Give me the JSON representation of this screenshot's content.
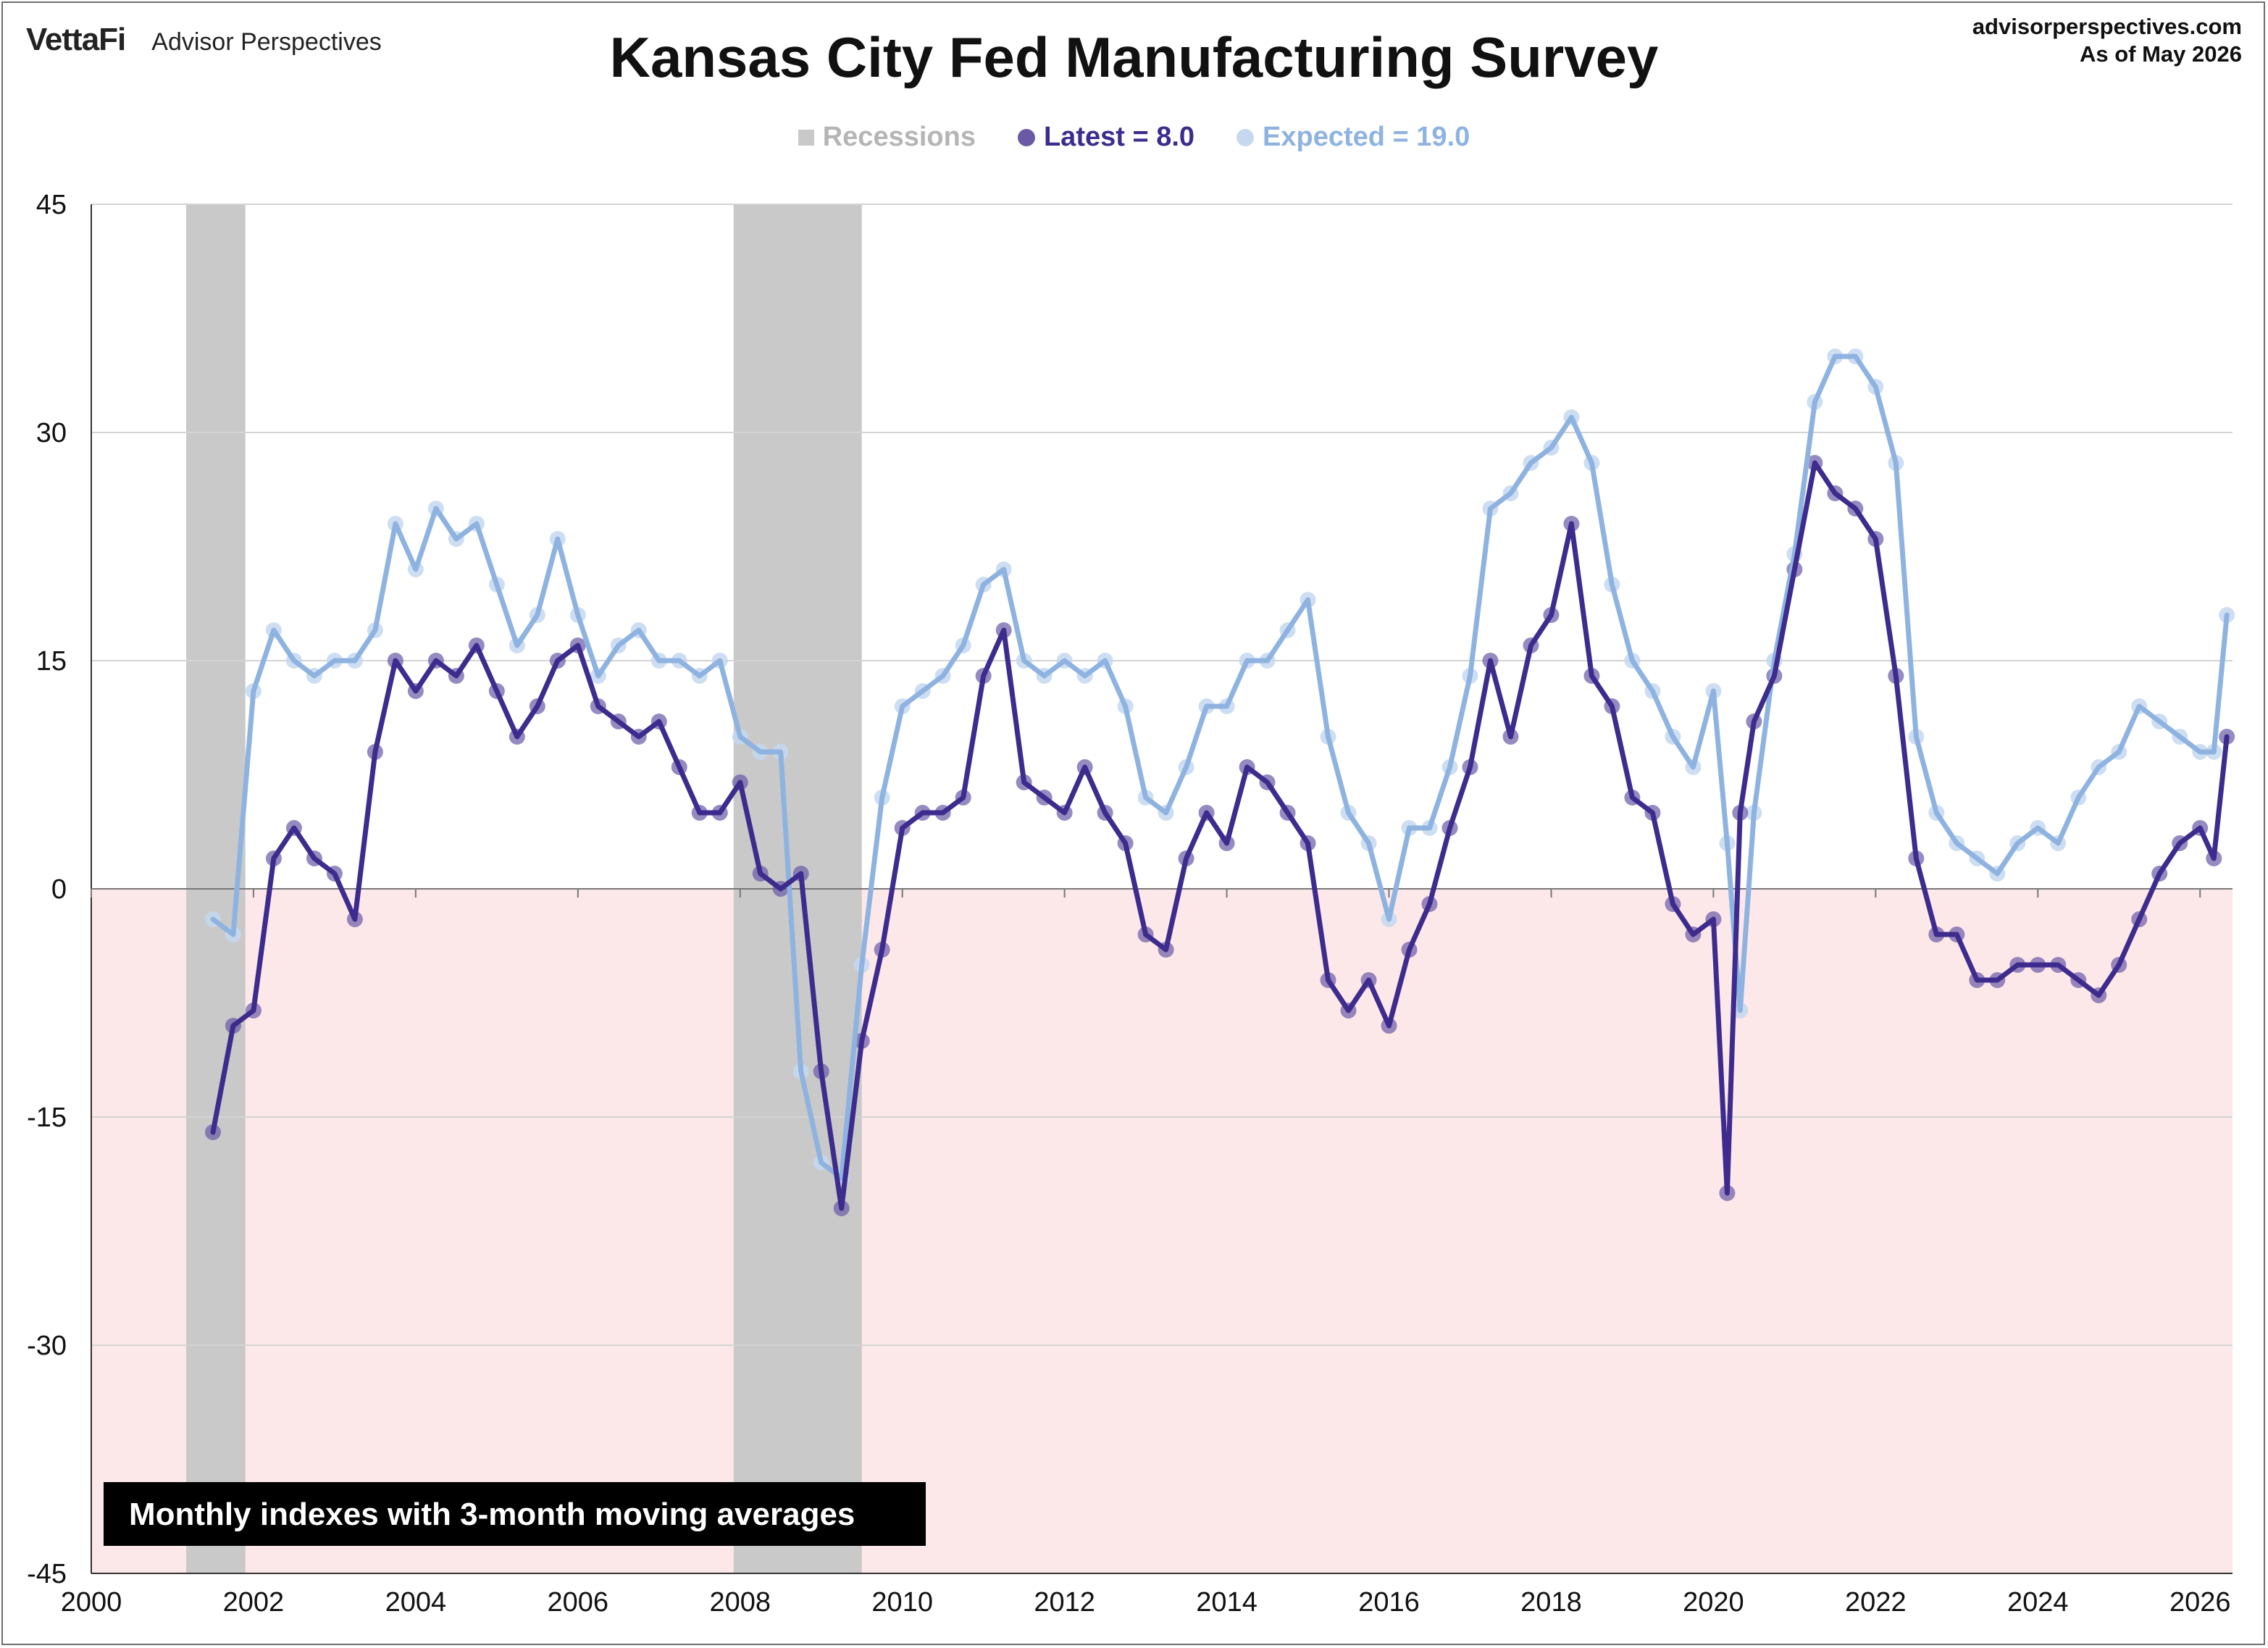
{
  "header": {
    "brand": "VettaFi",
    "brand_sub": "Advisor Perspectives",
    "title": "Kansas City Fed Manufacturing Survey",
    "source_line1": "advisorperspectives.com",
    "source_line2": "As of May 2026"
  },
  "legend": {
    "recessions": "Recessions",
    "latest": "Latest = 8.0",
    "expected": "Expected = 19.0"
  },
  "note": "Monthly indexes with 3-month moving averages",
  "colors": {
    "latest": "#3d2c8d",
    "latest_dot": "#6a5aa6",
    "expected": "#8fb3e0",
    "expected_dot": "#c6d8f0",
    "recession": "#c9c9c9",
    "negative_band": "#fde8e9",
    "legend_recession_text": "#b5b5b5"
  },
  "chart_data": {
    "type": "line",
    "xlabel": "",
    "ylabel": "",
    "xlim": [
      2000,
      2026.4
    ],
    "ylim": [
      -45,
      45
    ],
    "x_ticks": [
      "2000",
      "2002",
      "2004",
      "2006",
      "2008",
      "2010",
      "2012",
      "2014",
      "2016",
      "2018",
      "2020",
      "2022",
      "2024",
      "2026"
    ],
    "y_ticks": [
      "45",
      "30",
      "15",
      "0",
      "-15",
      "-30",
      "-45"
    ],
    "legend_position": "top-center",
    "grid": "horizontal",
    "recessions": [
      [
        2001.17,
        2001.9
      ],
      [
        2007.92,
        2009.5
      ]
    ],
    "series": [
      {
        "name": "Latest = 8.0",
        "style": "3-month moving average line with monthly dots",
        "x": [
          2001.5,
          2001.75,
          2002.0,
          2002.25,
          2002.5,
          2002.75,
          2003.0,
          2003.25,
          2003.5,
          2003.75,
          2004.0,
          2004.25,
          2004.5,
          2004.75,
          2005.0,
          2005.25,
          2005.5,
          2005.75,
          2006.0,
          2006.25,
          2006.5,
          2006.75,
          2007.0,
          2007.25,
          2007.5,
          2007.75,
          2008.0,
          2008.25,
          2008.5,
          2008.75,
          2009.0,
          2009.25,
          2009.5,
          2009.75,
          2010.0,
          2010.25,
          2010.5,
          2010.75,
          2011.0,
          2011.25,
          2011.5,
          2011.75,
          2012.0,
          2012.25,
          2012.5,
          2012.75,
          2013.0,
          2013.25,
          2013.5,
          2013.75,
          2014.0,
          2014.25,
          2014.5,
          2014.75,
          2015.0,
          2015.25,
          2015.5,
          2015.75,
          2016.0,
          2016.25,
          2016.5,
          2016.75,
          2017.0,
          2017.25,
          2017.5,
          2017.75,
          2018.0,
          2018.25,
          2018.5,
          2018.75,
          2019.0,
          2019.25,
          2019.5,
          2019.75,
          2020.0,
          2020.17,
          2020.33,
          2020.5,
          2020.75,
          2021.0,
          2021.25,
          2021.5,
          2021.75,
          2022.0,
          2022.25,
          2022.5,
          2022.75,
          2023.0,
          2023.25,
          2023.5,
          2023.75,
          2024.0,
          2024.25,
          2024.5,
          2024.75,
          2025.0,
          2025.25,
          2025.5,
          2025.75,
          2026.0,
          2026.17,
          2026.33
        ],
        "values": [
          -16,
          -9,
          -8,
          2,
          4,
          2,
          1,
          -2,
          9,
          15,
          13,
          15,
          14,
          16,
          13,
          10,
          12,
          15,
          16,
          12,
          11,
          10,
          11,
          8,
          5,
          5,
          7,
          1,
          0,
          1,
          -12,
          -21,
          -10,
          -4,
          4,
          5,
          5,
          6,
          14,
          17,
          7,
          6,
          5,
          8,
          5,
          3,
          -3,
          -4,
          2,
          5,
          3,
          8,
          7,
          5,
          3,
          -6,
          -8,
          -6,
          -9,
          -4,
          -1,
          4,
          8,
          15,
          10,
          16,
          18,
          24,
          14,
          12,
          6,
          5,
          -1,
          -3,
          -2,
          -20,
          5,
          11,
          14,
          21,
          28,
          26,
          25,
          23,
          14,
          2,
          -3,
          -3,
          -6,
          -6,
          -5,
          -5,
          -5,
          -6,
          -7,
          -5,
          -2,
          1,
          3,
          4,
          2,
          10
        ]
      },
      {
        "name": "Expected = 19.0",
        "style": "3-month moving average line with monthly dots",
        "x": [
          2001.5,
          2001.75,
          2002.0,
          2002.25,
          2002.5,
          2002.75,
          2003.0,
          2003.25,
          2003.5,
          2003.75,
          2004.0,
          2004.25,
          2004.5,
          2004.75,
          2005.0,
          2005.25,
          2005.5,
          2005.75,
          2006.0,
          2006.25,
          2006.5,
          2006.75,
          2007.0,
          2007.25,
          2007.5,
          2007.75,
          2008.0,
          2008.25,
          2008.5,
          2008.75,
          2009.0,
          2009.25,
          2009.5,
          2009.75,
          2010.0,
          2010.25,
          2010.5,
          2010.75,
          2011.0,
          2011.25,
          2011.5,
          2011.75,
          2012.0,
          2012.25,
          2012.5,
          2012.75,
          2013.0,
          2013.25,
          2013.5,
          2013.75,
          2014.0,
          2014.25,
          2014.5,
          2014.75,
          2015.0,
          2015.25,
          2015.5,
          2015.75,
          2016.0,
          2016.25,
          2016.5,
          2016.75,
          2017.0,
          2017.25,
          2017.5,
          2017.75,
          2018.0,
          2018.25,
          2018.5,
          2018.75,
          2019.0,
          2019.25,
          2019.5,
          2019.75,
          2020.0,
          2020.17,
          2020.33,
          2020.5,
          2020.75,
          2021.0,
          2021.25,
          2021.5,
          2021.75,
          2022.0,
          2022.25,
          2022.5,
          2022.75,
          2023.0,
          2023.25,
          2023.5,
          2023.75,
          2024.0,
          2024.25,
          2024.5,
          2024.75,
          2025.0,
          2025.25,
          2025.5,
          2025.75,
          2026.0,
          2026.17,
          2026.33
        ],
        "values": [
          -2,
          -3,
          13,
          17,
          15,
          14,
          15,
          15,
          17,
          24,
          21,
          25,
          23,
          24,
          20,
          16,
          18,
          23,
          18,
          14,
          16,
          17,
          15,
          15,
          14,
          15,
          10,
          9,
          9,
          -12,
          -18,
          -19,
          -5,
          6,
          12,
          13,
          14,
          16,
          20,
          21,
          15,
          14,
          15,
          14,
          15,
          12,
          6,
          5,
          8,
          12,
          12,
          15,
          15,
          17,
          19,
          10,
          5,
          3,
          -2,
          4,
          4,
          8,
          14,
          25,
          26,
          28,
          29,
          31,
          28,
          20,
          15,
          13,
          10,
          8,
          13,
          3,
          -8,
          5,
          15,
          22,
          32,
          35,
          35,
          33,
          28,
          10,
          5,
          3,
          2,
          1,
          3,
          4,
          3,
          6,
          8,
          9,
          12,
          11,
          10,
          9,
          9,
          18
        ]
      }
    ]
  }
}
